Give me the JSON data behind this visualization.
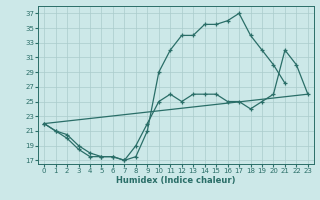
{
  "xlabel": "Humidex (Indice chaleur)",
  "bg_color": "#cce8e8",
  "grid_color": "#aacccc",
  "line_color": "#2a6e68",
  "xlim": [
    -0.5,
    23.5
  ],
  "ylim": [
    16.5,
    38
  ],
  "yticks": [
    17,
    19,
    21,
    23,
    25,
    27,
    29,
    31,
    33,
    35,
    37
  ],
  "xticks": [
    0,
    1,
    2,
    3,
    4,
    5,
    6,
    7,
    8,
    9,
    10,
    11,
    12,
    13,
    14,
    15,
    16,
    17,
    18,
    19,
    20,
    21,
    22,
    23
  ],
  "line1_x": [
    0,
    1,
    2,
    3,
    4,
    5,
    6,
    7,
    8,
    9,
    10,
    11,
    12,
    13,
    14,
    15,
    16,
    17,
    18,
    19,
    20,
    21
  ],
  "line1_y": [
    22,
    21,
    20,
    18.5,
    17.5,
    17.5,
    17.5,
    17,
    17.5,
    21,
    29,
    32,
    34,
    34,
    35.5,
    35.5,
    36,
    37,
    34,
    32,
    30,
    27.5
  ],
  "line2_x": [
    0,
    23
  ],
  "line2_y": [
    22,
    26
  ],
  "line3_x": [
    0,
    1,
    2,
    3,
    4,
    5,
    6,
    7,
    8,
    9,
    10,
    11,
    12,
    13,
    14,
    15,
    16,
    17,
    18,
    19,
    20,
    21,
    22,
    23
  ],
  "line3_y": [
    22,
    21,
    20.5,
    19,
    18,
    17.5,
    17.5,
    17,
    19,
    22,
    25,
    26,
    25,
    26,
    26,
    26,
    25,
    25,
    24,
    25,
    26,
    32,
    30,
    26
  ]
}
